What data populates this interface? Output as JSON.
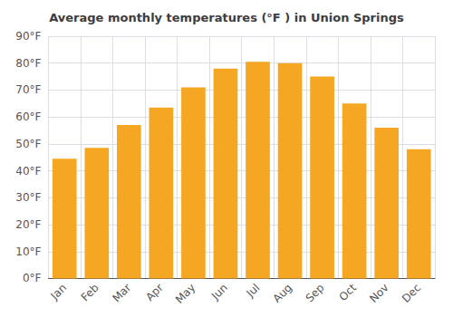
{
  "chart_data": {
    "type": "bar",
    "title": "Average monthly temperatures (°F ) in Union Springs",
    "categories": [
      "Jan",
      "Feb",
      "Mar",
      "Apr",
      "May",
      "Jun",
      "Jul",
      "Aug",
      "Sep",
      "Oct",
      "Nov",
      "Dec"
    ],
    "values": [
      44.5,
      48.5,
      57.0,
      63.5,
      71.0,
      78.0,
      80.5,
      80.0,
      75.0,
      65.0,
      56.0,
      48.0
    ],
    "color": "#F5A623",
    "ylim": [
      0,
      90
    ],
    "yticks": [
      {
        "value": 0,
        "label": "0°F"
      },
      {
        "value": 10,
        "label": "10°F"
      },
      {
        "value": 20,
        "label": "20°F"
      },
      {
        "value": 30,
        "label": "30°F"
      },
      {
        "value": 40,
        "label": "40°F"
      },
      {
        "value": 50,
        "label": "50°F"
      },
      {
        "value": 60,
        "label": "60°F"
      },
      {
        "value": 70,
        "label": "70°F"
      },
      {
        "value": 80,
        "label": "80°F"
      },
      {
        "value": 90,
        "label": "90°F"
      }
    ],
    "grid": true
  }
}
